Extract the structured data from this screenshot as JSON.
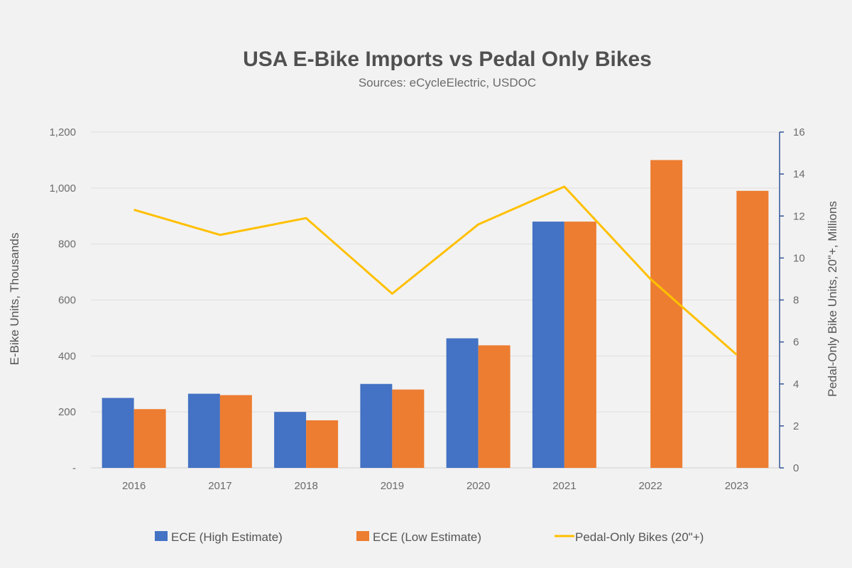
{
  "chart_data": {
    "type": "bar",
    "title": "USA E-Bike Imports vs Pedal Only Bikes",
    "subtitle": "Sources: eCycleElectric, USDOC",
    "categories": [
      "2016",
      "2017",
      "2018",
      "2019",
      "2020",
      "2021",
      "2022",
      "2023"
    ],
    "y_left": {
      "label": "E-Bike Units, Thousands",
      "ylim": [
        0,
        1200
      ],
      "ticks": [
        0,
        200,
        400,
        600,
        800,
        1000,
        1200
      ],
      "tick_labels": [
        "-",
        "200",
        "400",
        "600",
        "800",
        "1,000",
        "1,200"
      ]
    },
    "y_right": {
      "label": "Pedal-Only Bike Units, 20\"+, Millions",
      "ylim": [
        0,
        16
      ],
      "ticks": [
        0,
        2,
        4,
        6,
        8,
        10,
        12,
        14,
        16
      ],
      "tick_labels": [
        "0",
        "2",
        "4",
        "6",
        "8",
        "10",
        "12",
        "14",
        "16"
      ]
    },
    "series": [
      {
        "name": "ECE (High Estimate)",
        "type": "bar",
        "axis": "left",
        "color": "#4472c4",
        "values": [
          250,
          265,
          200,
          300,
          463,
          880,
          null,
          null
        ]
      },
      {
        "name": "ECE (Low Estimate)",
        "type": "bar",
        "axis": "left",
        "color": "#ed7d31",
        "values": [
          210,
          260,
          170,
          280,
          438,
          880,
          1100,
          990
        ]
      },
      {
        "name": "Pedal-Only Bikes (20\"+)",
        "type": "line",
        "axis": "right",
        "color": "#ffc000",
        "values": [
          12.3,
          11.1,
          11.9,
          8.3,
          11.6,
          13.4,
          9.0,
          5.4
        ]
      }
    ],
    "grid": true,
    "legend_position": "bottom"
  }
}
